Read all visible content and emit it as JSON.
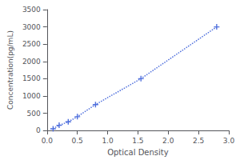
{
  "chart_data": {
    "type": "line",
    "x": [
      0.1,
      0.2,
      0.35,
      0.5,
      0.8,
      1.55,
      2.8
    ],
    "values": [
      50,
      150,
      250,
      400,
      750,
      1500,
      3000
    ],
    "xlabel": "Optical Density",
    "ylabel": "Concentration(pg/mL)",
    "xlim": [
      0,
      3.0
    ],
    "ylim": [
      0,
      3500
    ],
    "xticks": [
      {
        "value": 0,
        "label": "0.0"
      },
      0.5,
      {
        "value": 1,
        "label": "1.0"
      },
      1.5,
      {
        "value": 2,
        "label": "2.0"
      },
      2.5,
      {
        "value": 3,
        "label": "3.0"
      }
    ],
    "yticks": [
      0,
      500,
      1000,
      1500,
      2000,
      2500,
      3000,
      3500
    ],
    "marker": "plus",
    "line_style": "dotted",
    "grid": false
  }
}
